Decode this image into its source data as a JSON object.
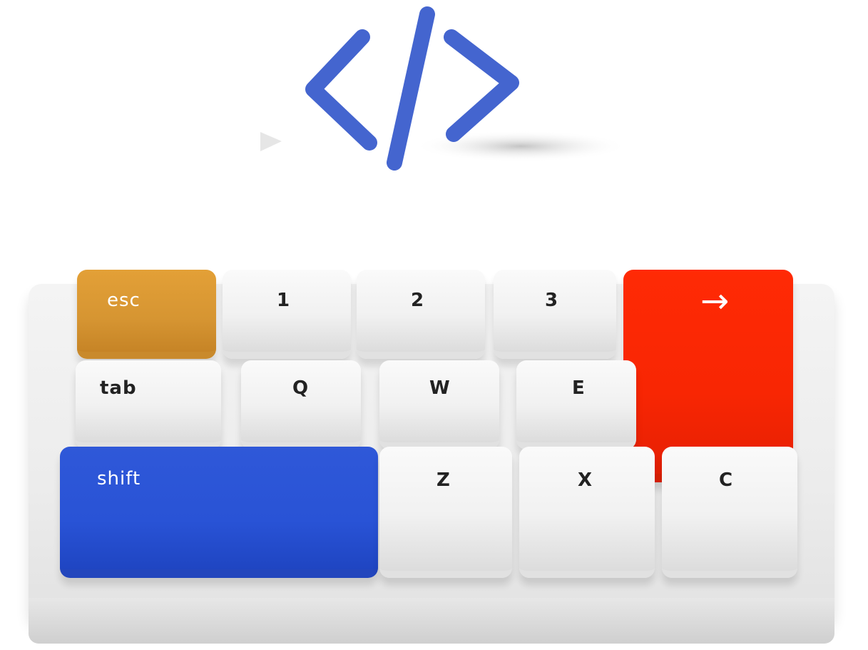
{
  "illustration": {
    "logo": "code-brackets-icon",
    "colors": {
      "logo_blue": "#4465cf",
      "board": "#efefef",
      "esc_key": "#dd9b35",
      "enter_key": "#fb2804",
      "shift_key": "#2a55d8",
      "white_key": "#f5f5f5"
    },
    "keys": {
      "esc": "esc",
      "one": "1",
      "two": "2",
      "three": "3",
      "arrow": "→",
      "tab": "tab",
      "q": "Q",
      "w": "W",
      "e": "E",
      "shift": "shift",
      "z": "Z",
      "x": "X",
      "c": "C"
    }
  }
}
